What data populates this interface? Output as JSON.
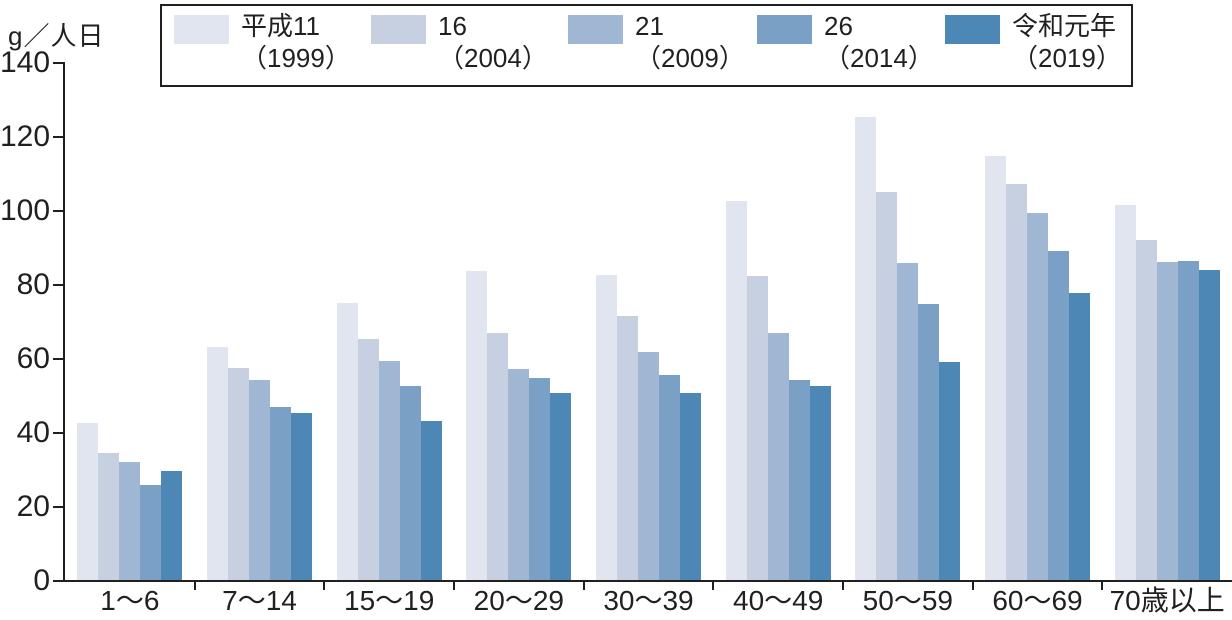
{
  "chart_data": {
    "type": "bar",
    "title": "",
    "ylabel": "g／人日",
    "xlabel": "",
    "ylim": [
      0,
      140
    ],
    "yticks": [
      0,
      20,
      40,
      60,
      80,
      100,
      120,
      140
    ],
    "grid": false,
    "legend_position": "top",
    "categories": [
      "1〜6",
      "7〜14",
      "15〜19",
      "20〜29",
      "30〜39",
      "40〜49",
      "50〜59",
      "60〜69",
      "70歳以上"
    ],
    "series": [
      {
        "name": "平成11",
        "name_sub": "（1999）",
        "color": "#e0e5f0",
        "values": [
          42.6,
          63.3,
          75.2,
          83.7,
          82.8,
          102.7,
          125.5,
          114.9,
          101.5
        ]
      },
      {
        "name": "16",
        "name_sub": "（2004）",
        "color": "#c6d0e1",
        "values": [
          34.5,
          57.5,
          65.5,
          67.0,
          71.6,
          82.4,
          105.2,
          107.3,
          92.1
        ]
      },
      {
        "name": "21",
        "name_sub": "（2009）",
        "color": "#a0b7d3",
        "values": [
          32.1,
          54.3,
          59.4,
          57.3,
          61.8,
          67.0,
          85.9,
          99.5,
          86.3
        ]
      },
      {
        "name": "26",
        "name_sub": "（2014）",
        "color": "#7ba0c5",
        "values": [
          26.0,
          47.1,
          52.6,
          54.8,
          55.6,
          54.3,
          75.0,
          89.1,
          86.5
        ]
      },
      {
        "name": "令和元年",
        "name_sub": "（2019）",
        "color": "#4c87b6",
        "values": [
          29.6,
          45.3,
          43.3,
          50.8,
          50.8,
          52.8,
          59.2,
          77.8,
          84.0
        ]
      }
    ],
    "colors": {
      "axis": "#221f1f",
      "text": "#221f1f",
      "background": "#ffffff"
    }
  }
}
